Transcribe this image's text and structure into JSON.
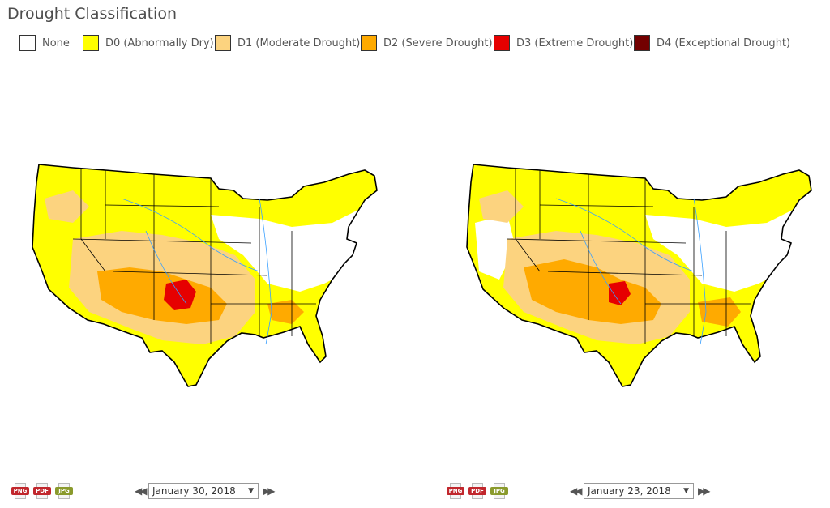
{
  "page_title": "Drought Classification",
  "legend": [
    {
      "label": "None",
      "color": "#ffffff"
    },
    {
      "label": "D0 (Abnormally Dry)",
      "color": "#ffff00"
    },
    {
      "label": "D1 (Moderate Drought)",
      "color": "#fcd37f"
    },
    {
      "label": "D2 (Severe Drought)",
      "color": "#ffaa00"
    },
    {
      "label": "D3 (Extreme Drought)",
      "color": "#e60000"
    },
    {
      "label": "D4 (Exceptional Drought)",
      "color": "#730000"
    }
  ],
  "maps": [
    {
      "date": "January 30, 2018"
    },
    {
      "date": "January 23, 2018"
    }
  ],
  "downloads": [
    {
      "label": "PNG",
      "color": "#c1272d"
    },
    {
      "label": "PDF",
      "color": "#c1272d"
    },
    {
      "label": "JPG",
      "color": "#8a9a2c"
    }
  ],
  "nav": {
    "prev_symbol": "◀◀",
    "next_symbol": "▶▶",
    "dropdown_symbol": "▼"
  }
}
